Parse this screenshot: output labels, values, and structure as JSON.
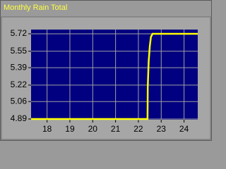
{
  "chart_data": {
    "type": "line",
    "title": "Monthly Rain Total",
    "x": [
      17.3,
      22.4,
      22.41,
      22.45,
      22.5,
      22.55,
      22.62,
      24.6
    ],
    "series": [
      {
        "color": "#ffff00",
        "values": [
          4.89,
          4.89,
          5.2,
          5.45,
          5.6,
          5.69,
          5.72,
          5.72
        ]
      }
    ],
    "xlim": [
      17.3,
      24.6
    ],
    "ylim": [
      4.89,
      5.72
    ],
    "xticks": [
      18,
      19,
      20,
      21,
      22,
      23,
      24
    ],
    "yticks": [
      4.89,
      5.06,
      5.22,
      5.39,
      5.55,
      5.72
    ],
    "grid": true,
    "background": "#000080"
  }
}
